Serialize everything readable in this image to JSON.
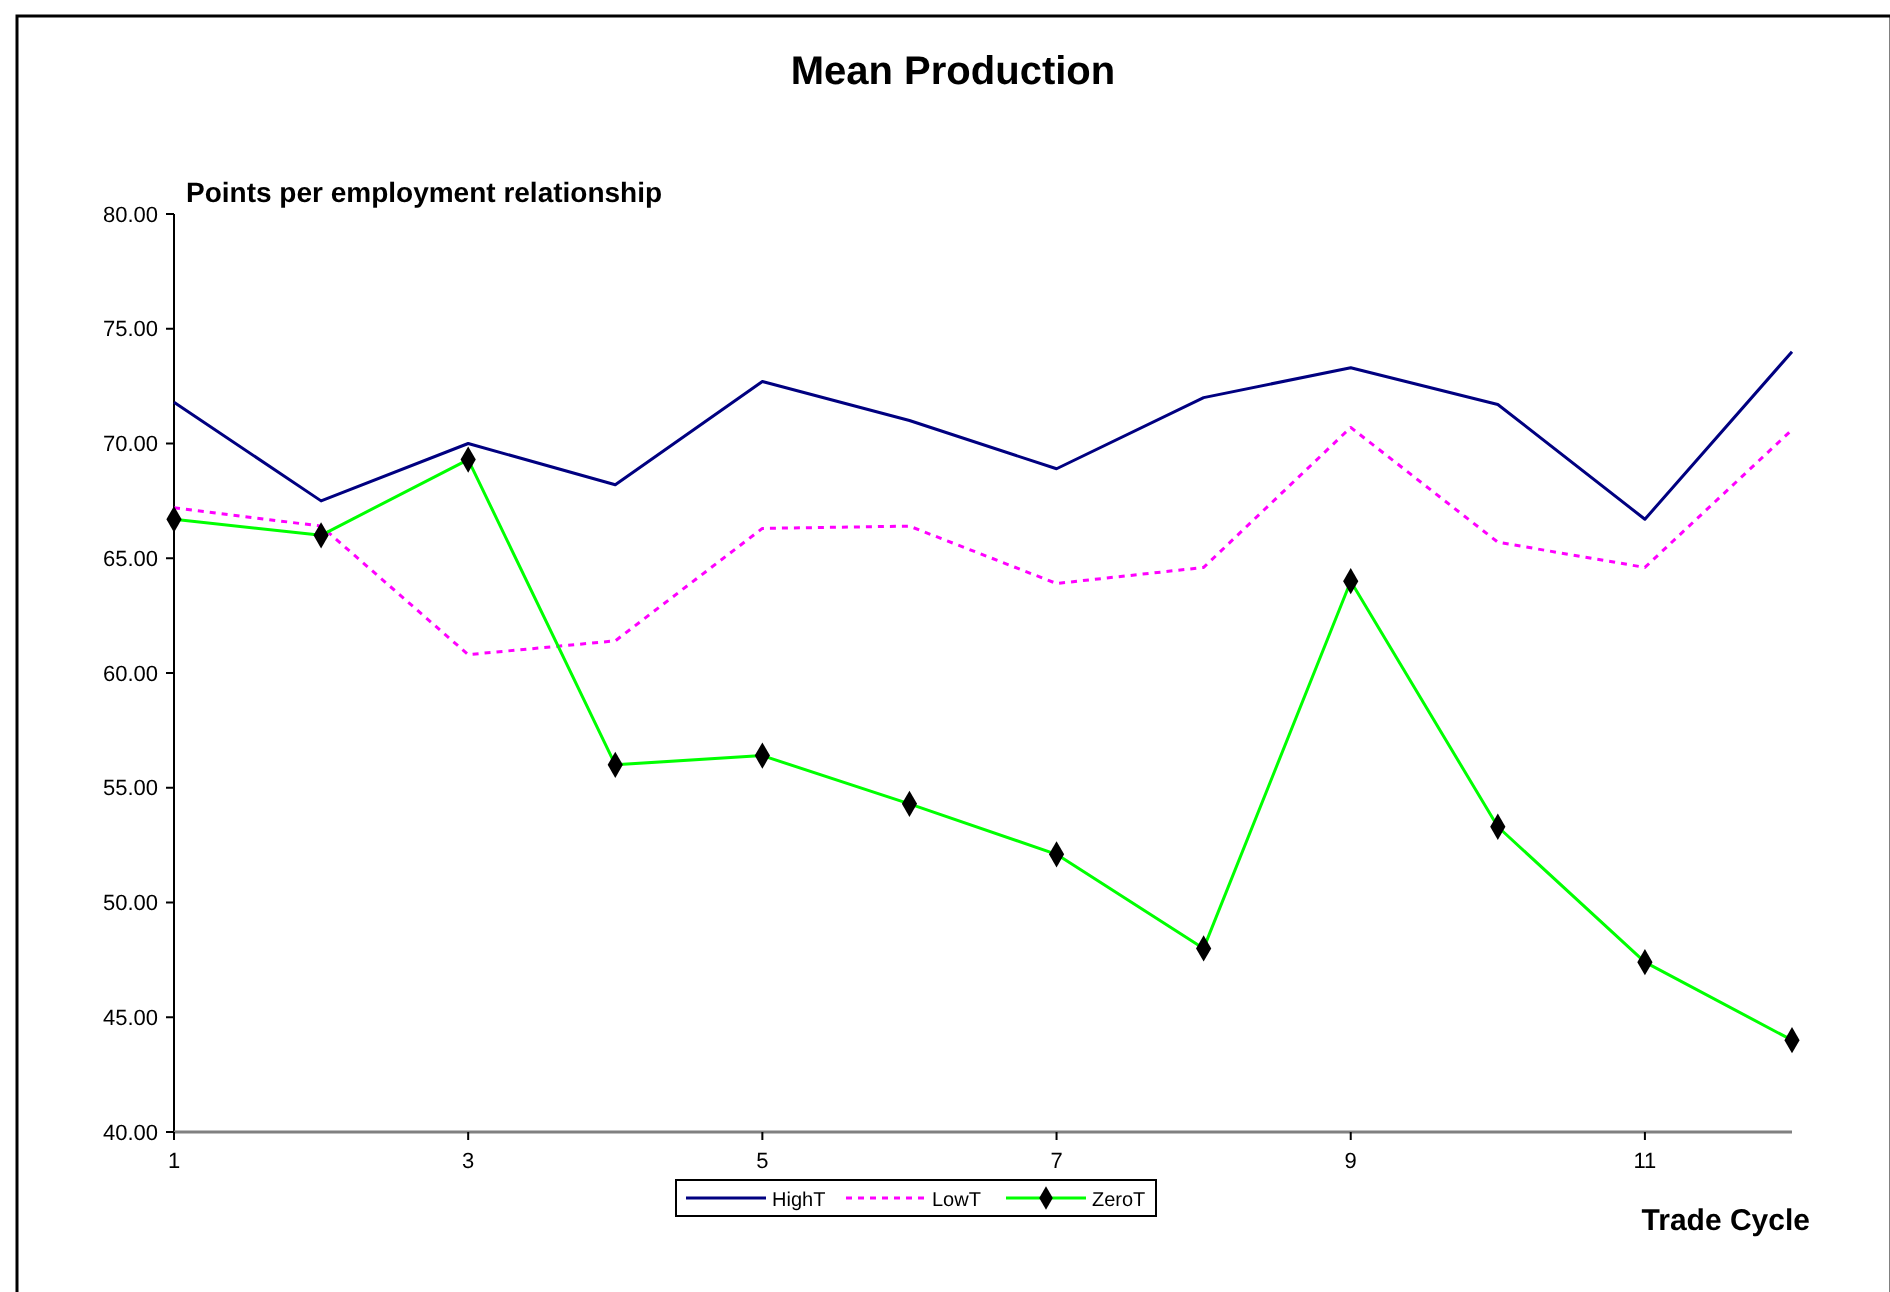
{
  "chart_data": {
    "type": "line",
    "title": "Mean Production",
    "ylabel": "Points per employment relationship",
    "xlabel": "Trade Cycle",
    "x": [
      1,
      2,
      3,
      4,
      5,
      6,
      7,
      8,
      9,
      10,
      11,
      12
    ],
    "series": [
      {
        "name": "HighT",
        "color": "#000080",
        "line_style": "solid",
        "marker": "none",
        "values": [
          71.8,
          67.5,
          70.0,
          68.2,
          72.7,
          71.0,
          68.9,
          72.0,
          73.3,
          71.7,
          66.7,
          74.0
        ]
      },
      {
        "name": "LowT",
        "color": "#ff00ff",
        "line_style": "dotted",
        "marker": "none",
        "values": [
          67.2,
          66.4,
          60.8,
          61.4,
          66.3,
          66.4,
          63.9,
          64.6,
          70.7,
          65.7,
          64.6,
          70.6
        ]
      },
      {
        "name": "ZeroT",
        "color": "#00ff00",
        "line_style": "solid",
        "marker": "diamond",
        "values": [
          66.7,
          66.0,
          69.3,
          56.0,
          56.4,
          54.3,
          52.1,
          48.0,
          64.0,
          53.3,
          47.4,
          44.0
        ]
      }
    ],
    "xlim": [
      1,
      12
    ],
    "xticks": [
      1,
      3,
      5,
      7,
      9,
      11
    ],
    "ylim": [
      40,
      80
    ],
    "yticks": [
      {
        "value": 40,
        "label": "40.00"
      },
      {
        "value": 45,
        "label": "45.00"
      },
      {
        "value": 50,
        "label": "50.00"
      },
      {
        "value": 55,
        "label": "55.00"
      },
      {
        "value": 60,
        "label": "60.00"
      },
      {
        "value": 65,
        "label": "65.00"
      },
      {
        "value": 70,
        "label": "70.00"
      },
      {
        "value": 75,
        "label": "75.00"
      },
      {
        "value": 80,
        "label": "80.00"
      }
    ],
    "grid": false,
    "legend": "bottom"
  }
}
